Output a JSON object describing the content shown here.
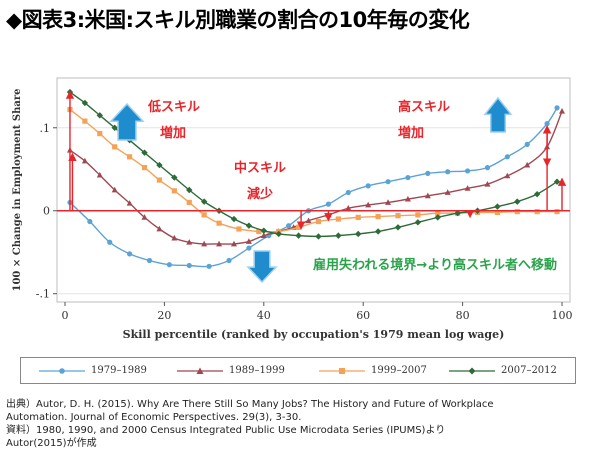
{
  "title": "◆図表3:米国:スキル別職業の割合の10年毎の変化",
  "chart_data": {
    "type": "line",
    "xlabel": "Skill percentile (ranked by occupation's 1979 mean log wage)",
    "ylabel": "100 × Change in Employment Share",
    "xlim": [
      0,
      100
    ],
    "ylim": [
      -0.11,
      0.16
    ],
    "xticks": [
      "0",
      "20",
      "40",
      "60",
      "80",
      "100"
    ],
    "yticks": [
      "-.1",
      "0",
      ".1"
    ],
    "series": [
      {
        "name": "1979–1989",
        "color": "#5ba3d6",
        "marker": "circle",
        "x": [
          1,
          5,
          9,
          13,
          17,
          21,
          25,
          29,
          33,
          37,
          41,
          45,
          49,
          53,
          57,
          61,
          65,
          69,
          73,
          77,
          81,
          85,
          89,
          93,
          97,
          99
        ],
        "y": [
          0.01,
          -0.013,
          -0.038,
          -0.052,
          -0.06,
          -0.065,
          -0.066,
          -0.067,
          -0.06,
          -0.045,
          -0.03,
          -0.018,
          0,
          0.008,
          0.022,
          0.03,
          0.035,
          0.04,
          0.045,
          0.047,
          0.048,
          0.052,
          0.065,
          0.08,
          0.105,
          0.124
        ]
      },
      {
        "name": "1989–1999",
        "color": "#a04852",
        "marker": "triangle",
        "x": [
          1,
          4,
          7,
          10,
          13,
          16,
          19,
          22,
          25,
          28,
          31,
          34,
          37,
          40,
          43,
          46,
          49,
          53,
          57,
          61,
          65,
          69,
          73,
          77,
          81,
          85,
          89,
          93,
          97,
          100
        ],
        "y": [
          0.073,
          0.06,
          0.043,
          0.025,
          0.009,
          -0.008,
          -0.022,
          -0.033,
          -0.038,
          -0.04,
          -0.04,
          -0.04,
          -0.037,
          -0.03,
          -0.025,
          -0.02,
          -0.012,
          -0.005,
          0.003,
          0.007,
          0.01,
          0.014,
          0.018,
          0.022,
          0.027,
          0.032,
          0.042,
          0.055,
          0.077,
          0.12
        ]
      },
      {
        "name": "1999–2007",
        "color": "#f5a259",
        "marker": "square",
        "x": [
          1,
          4,
          7,
          10,
          13,
          16,
          19,
          22,
          25,
          28,
          31,
          35,
          39,
          43,
          47,
          51,
          55,
          59,
          63,
          67,
          71,
          75,
          79,
          83,
          87,
          91,
          95,
          99
        ],
        "y": [
          0.122,
          0.108,
          0.093,
          0.077,
          0.065,
          0.052,
          0.037,
          0.024,
          0.01,
          -0.005,
          -0.015,
          -0.022,
          -0.025,
          -0.025,
          -0.02,
          -0.013,
          -0.01,
          -0.008,
          -0.007,
          -0.006,
          -0.005,
          -0.003,
          -0.003,
          -0.002,
          -0.002,
          -0.001,
          -0.001,
          -0.001
        ]
      },
      {
        "name": "2007–2012",
        "color": "#2e6b38",
        "marker": "diamond",
        "x": [
          1,
          4,
          7,
          10,
          13,
          16,
          19,
          22,
          25,
          28,
          31,
          34,
          37,
          40,
          43,
          47,
          51,
          55,
          59,
          63,
          67,
          71,
          75,
          79,
          83,
          87,
          91,
          95,
          99
        ],
        "y": [
          0.143,
          0.13,
          0.115,
          0.1,
          0.085,
          0.07,
          0.055,
          0.04,
          0.025,
          0.011,
          0,
          -0.01,
          -0.018,
          -0.024,
          -0.028,
          -0.03,
          -0.031,
          -0.03,
          -0.028,
          -0.025,
          -0.02,
          -0.014,
          -0.008,
          -0.003,
          0,
          0.005,
          0.011,
          0.02,
          0.035
        ]
      }
    ],
    "annotations": {
      "low_skill_1": "低スキル",
      "low_skill_2": "増加",
      "mid_skill_1": "中スキル",
      "mid_skill_2": "減少",
      "high_skill_1": "高スキル",
      "high_skill_2": "増加",
      "boundary": "雇用失われる境界→より高スキル者へ移動"
    },
    "arrows_red_x": [
      1,
      1.5,
      47.5,
      53,
      81.5,
      97,
      100
    ],
    "accent_colors": {
      "red": "#e8252b",
      "blue": "#1f8ccd",
      "green": "#2aa34a"
    }
  },
  "source": {
    "line1": "出典）Autor, D. H. (2015). Why Are There Still So Many Jobs? The History and Future of Workplace",
    "line2": "Automation. Journal of Economic Perspectives. 29(3), 3-30.",
    "line3": "資料）1980, 1990, and 2000 Census Integrated Public Use Microdata Series (IPUMS)より",
    "line4": "Autor(2015)が作成"
  }
}
